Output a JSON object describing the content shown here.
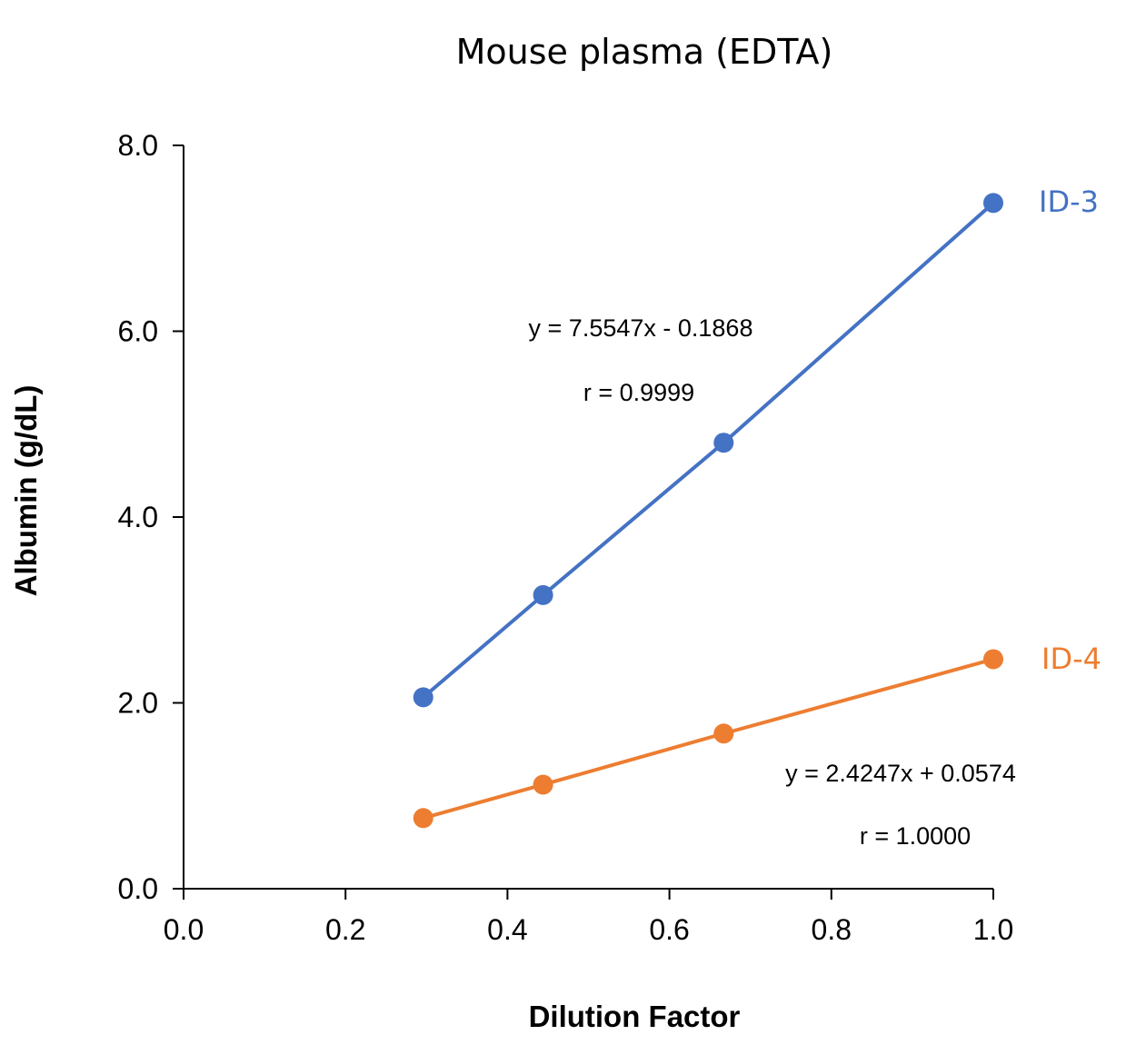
{
  "chart_data": {
    "type": "scatter",
    "title": "Mouse plasma (EDTA)",
    "xlabel": "Dilution Factor",
    "ylabel": "Albumin (g/dL)",
    "xlim": [
      0.0,
      1.0
    ],
    "ylim": [
      0.0,
      8.0
    ],
    "x_ticks": [
      "0.0",
      "0.2",
      "0.4",
      "0.6",
      "0.8",
      "1.0"
    ],
    "y_ticks": [
      "0.0",
      "2.0",
      "4.0",
      "6.0",
      "8.0"
    ],
    "grid": false,
    "series": [
      {
        "name": "ID-3",
        "color": "#4472C4",
        "x": [
          0.296,
          0.444,
          0.667,
          1.0
        ],
        "y": [
          2.06,
          3.16,
          4.8,
          7.38
        ],
        "equation": "y = 7.5547x - 0.1868",
        "r": "r = 0.9999"
      },
      {
        "name": "ID-4",
        "color": "#ED7D31",
        "x": [
          0.296,
          0.444,
          0.667,
          1.0
        ],
        "y": [
          0.76,
          1.12,
          1.67,
          2.47
        ],
        "equation": "y = 2.4247x + 0.0574",
        "r": "r = 1.0000"
      }
    ]
  }
}
